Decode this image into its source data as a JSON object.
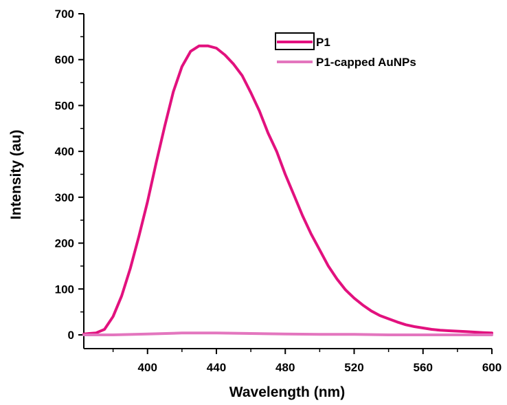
{
  "chart_data": {
    "type": "line",
    "xlabel": "Wavelength (nm)",
    "ylabel": "Intensity (au)",
    "xlim": [
      363,
      600
    ],
    "ylim": [
      -30,
      700
    ],
    "xticks": [
      400,
      440,
      480,
      520,
      560,
      600
    ],
    "yticks": [
      0,
      100,
      200,
      300,
      400,
      500,
      600,
      700
    ],
    "legend_position": "top-right",
    "series": [
      {
        "name": "P1",
        "color": "#e2117e",
        "x": [
          363,
          370,
          375,
          380,
          385,
          390,
          395,
          400,
          405,
          410,
          415,
          420,
          425,
          430,
          435,
          440,
          445,
          450,
          455,
          460,
          465,
          470,
          475,
          480,
          485,
          490,
          495,
          500,
          505,
          510,
          515,
          520,
          525,
          530,
          535,
          540,
          545,
          550,
          555,
          560,
          565,
          570,
          575,
          580,
          585,
          590,
          595,
          600
        ],
        "y": [
          2,
          4,
          12,
          40,
          85,
          145,
          215,
          290,
          375,
          455,
          530,
          585,
          618,
          630,
          630,
          625,
          610,
          590,
          565,
          528,
          488,
          440,
          400,
          350,
          305,
          260,
          220,
          185,
          150,
          122,
          98,
          80,
          65,
          52,
          42,
          35,
          28,
          22,
          18,
          15,
          12,
          10,
          9,
          8,
          7,
          6,
          5,
          4
        ]
      },
      {
        "name": "P1-capped AuNPs",
        "color": "#e376be",
        "x": [
          363,
          380,
          400,
          420,
          440,
          460,
          480,
          500,
          520,
          540,
          560,
          580,
          600
        ],
        "y": [
          0,
          0,
          2,
          4,
          4,
          3,
          2,
          1,
          1,
          0,
          0,
          0,
          0
        ]
      }
    ]
  }
}
